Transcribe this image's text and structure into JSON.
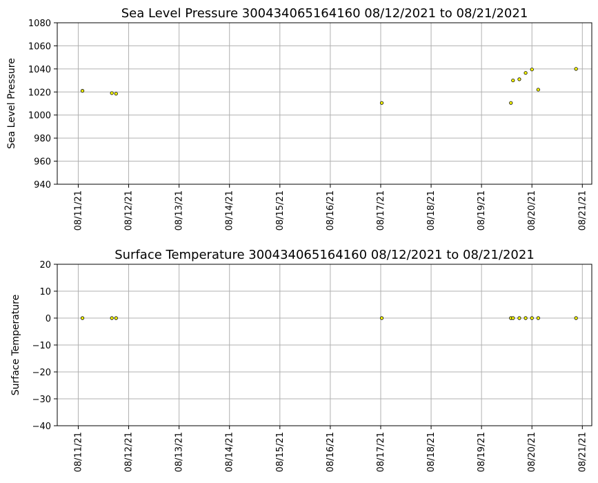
{
  "chart_data": [
    {
      "type": "scatter",
      "title": "Sea Level Pressure 300434065164160  08/12/2021 to 08/21/2021",
      "ylabel": "Sea Level Pressure",
      "xlabel": "",
      "ylim": [
        940,
        1080
      ],
      "yticks": [
        940,
        960,
        980,
        1000,
        1020,
        1040,
        1060,
        1080
      ],
      "xlim": [
        "2021-08-10 14:00",
        "2021-08-21 04:30"
      ],
      "xticks": [
        "08/11/21",
        "08/12/21",
        "08/13/21",
        "08/14/21",
        "08/15/21",
        "08/16/21",
        "08/17/21",
        "08/18/21",
        "08/19/21",
        "08/20/21",
        "08/21/21"
      ],
      "xtick_dates": [
        "2021-08-11",
        "2021-08-12",
        "2021-08-13",
        "2021-08-14",
        "2021-08-15",
        "2021-08-16",
        "2021-08-17",
        "2021-08-18",
        "2021-08-19",
        "2021-08-20",
        "2021-08-21"
      ],
      "grid": true,
      "marker_color": "#ffff00",
      "points": [
        {
          "x": "2021-08-11 02:00",
          "y": 1021
        },
        {
          "x": "2021-08-11 16:00",
          "y": 1019
        },
        {
          "x": "2021-08-11 18:00",
          "y": 1018.5
        },
        {
          "x": "2021-08-17 00:30",
          "y": 1010.5
        },
        {
          "x": "2021-08-19 14:00",
          "y": 1010.5
        },
        {
          "x": "2021-08-19 15:00",
          "y": 1030
        },
        {
          "x": "2021-08-19 18:00",
          "y": 1031
        },
        {
          "x": "2021-08-19 21:00",
          "y": 1036.5
        },
        {
          "x": "2021-08-20 00:00",
          "y": 1039.5
        },
        {
          "x": "2021-08-20 03:00",
          "y": 1022
        },
        {
          "x": "2021-08-20 21:00",
          "y": 1040
        }
      ]
    },
    {
      "type": "scatter",
      "title": "Surface Temperature 300434065164160  08/12/2021 to 08/21/2021",
      "ylabel": "Surface Temperature",
      "xlabel": "",
      "ylim": [
        -40,
        20
      ],
      "yticks": [
        -40,
        -30,
        -20,
        -10,
        0,
        10,
        20
      ],
      "ytick_labels": [
        "−40",
        "−30",
        "−20",
        "−10",
        "0",
        "10",
        "20"
      ],
      "xlim": [
        "2021-08-10 14:00",
        "2021-08-21 04:30"
      ],
      "xticks": [
        "08/11/21",
        "08/12/21",
        "08/13/21",
        "08/14/21",
        "08/15/21",
        "08/16/21",
        "08/17/21",
        "08/18/21",
        "08/19/21",
        "08/20/21",
        "08/21/21"
      ],
      "xtick_dates": [
        "2021-08-11",
        "2021-08-12",
        "2021-08-13",
        "2021-08-14",
        "2021-08-15",
        "2021-08-16",
        "2021-08-17",
        "2021-08-18",
        "2021-08-19",
        "2021-08-20",
        "2021-08-21"
      ],
      "grid": true,
      "marker_color": "#ffff00",
      "points": [
        {
          "x": "2021-08-11 02:00",
          "y": 0
        },
        {
          "x": "2021-08-11 16:00",
          "y": 0
        },
        {
          "x": "2021-08-11 18:00",
          "y": 0
        },
        {
          "x": "2021-08-17 00:30",
          "y": 0
        },
        {
          "x": "2021-08-19 14:00",
          "y": 0
        },
        {
          "x": "2021-08-19 15:00",
          "y": 0
        },
        {
          "x": "2021-08-19 18:00",
          "y": 0
        },
        {
          "x": "2021-08-19 21:00",
          "y": 0
        },
        {
          "x": "2021-08-20 00:00",
          "y": 0
        },
        {
          "x": "2021-08-20 03:00",
          "y": 0
        },
        {
          "x": "2021-08-20 21:00",
          "y": 0
        }
      ]
    }
  ]
}
